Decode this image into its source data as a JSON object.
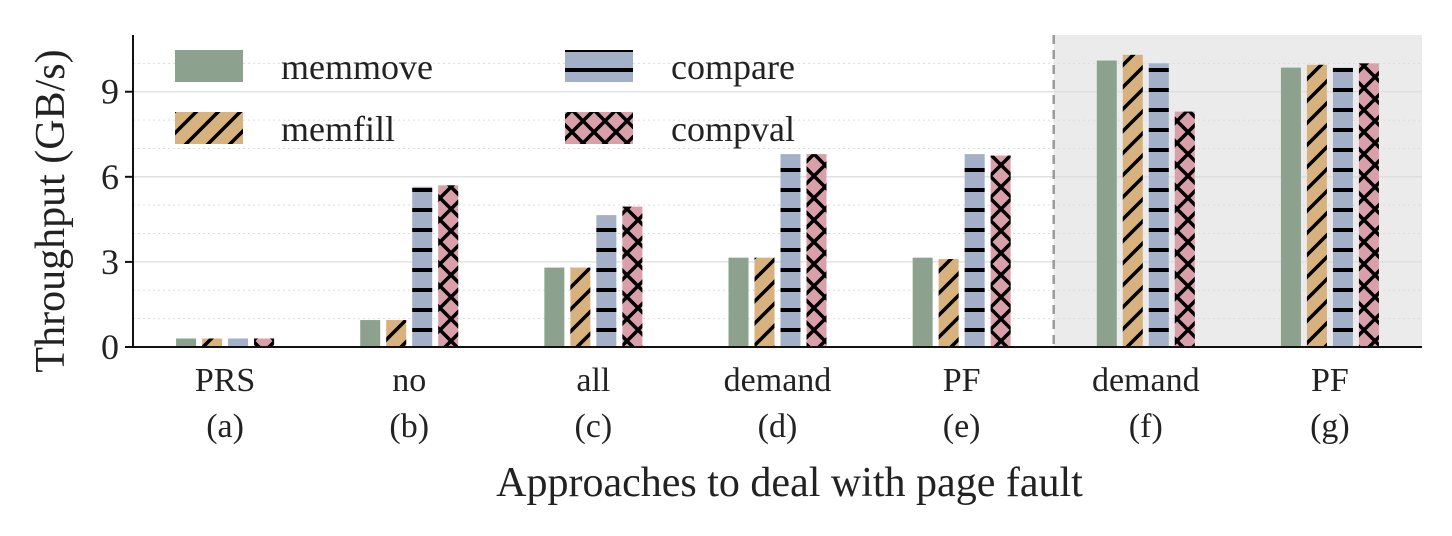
{
  "chart_data": {
    "type": "bar",
    "xlabel": "Approaches to deal with page fault",
    "ylabel": "Throughput (GB/s)",
    "ylim": [
      0,
      11
    ],
    "yticks": [
      0,
      3,
      6,
      9
    ],
    "minor_grid_step": 1,
    "grid": true,
    "legend_position": "top-left",
    "categories": [
      {
        "name": "PRS",
        "sub": "(a)"
      },
      {
        "name": "no",
        "sub": "(b)"
      },
      {
        "name": "all",
        "sub": "(c)"
      },
      {
        "name": "demand",
        "sub": "(d)"
      },
      {
        "name": "PF",
        "sub": "(e)"
      },
      {
        "name": "demand",
        "sub": "(f)"
      },
      {
        "name": "PF",
        "sub": "(g)"
      }
    ],
    "shaded_categories_from_index": 5,
    "series": [
      {
        "name": "memmove",
        "color": "#8da28e",
        "hatch": "none",
        "values": [
          0.3,
          0.95,
          2.8,
          3.15,
          3.15,
          10.1,
          9.85
        ]
      },
      {
        "name": "memfill",
        "color": "#d8b27e",
        "hatch": "slash",
        "values": [
          0.3,
          0.95,
          2.8,
          3.15,
          3.1,
          10.3,
          9.95
        ]
      },
      {
        "name": "compare",
        "color": "#a3b0c8",
        "hatch": "horizontal",
        "values": [
          0.3,
          5.65,
          4.65,
          6.8,
          6.8,
          10.0,
          9.85
        ]
      },
      {
        "name": "compval",
        "color": "#d9a0aa",
        "hatch": "cross",
        "values": [
          0.3,
          5.7,
          4.95,
          6.8,
          6.75,
          8.3,
          10.0
        ]
      }
    ],
    "colors": {
      "shade": "#ebebeb",
      "divider": "#9a9a9a",
      "grid": "#dddddd",
      "axis": "#111111"
    }
  }
}
